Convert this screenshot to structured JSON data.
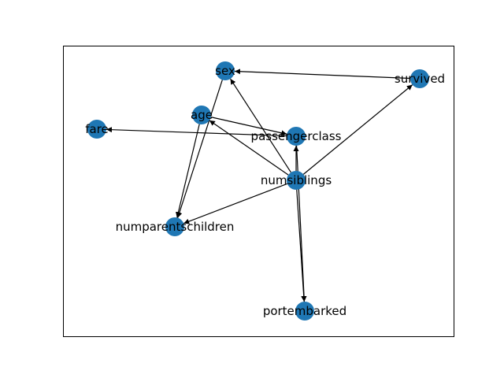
{
  "graph": {
    "nodes": [
      {
        "id": "sex",
        "label": "sex"
      },
      {
        "id": "survived",
        "label": "survived"
      },
      {
        "id": "age",
        "label": "age"
      },
      {
        "id": "fare",
        "label": "fare"
      },
      {
        "id": "passengerclass",
        "label": "passengerclass"
      },
      {
        "id": "numsiblings",
        "label": "numsiblings"
      },
      {
        "id": "numparentschildren",
        "label": "numparentschildren"
      },
      {
        "id": "portembarked",
        "label": "portembarked"
      }
    ],
    "edges": [
      {
        "source": "survived",
        "target": "sex"
      },
      {
        "source": "passengerclass",
        "target": "fare"
      },
      {
        "source": "age",
        "target": "passengerclass"
      },
      {
        "source": "age",
        "target": "numparentschildren"
      },
      {
        "source": "sex",
        "target": "numparentschildren"
      },
      {
        "source": "numsiblings",
        "target": "sex"
      },
      {
        "source": "numsiblings",
        "target": "age"
      },
      {
        "source": "numsiblings",
        "target": "survived"
      },
      {
        "source": "numsiblings",
        "target": "passengerclass"
      },
      {
        "source": "numsiblings",
        "target": "numparentschildren"
      },
      {
        "source": "numsiblings",
        "target": "portembarked"
      },
      {
        "source": "passengerclass",
        "target": "portembarked"
      }
    ],
    "colors": {
      "node": "#1f77b4",
      "edge": "#000000",
      "frame": "#000000"
    }
  }
}
